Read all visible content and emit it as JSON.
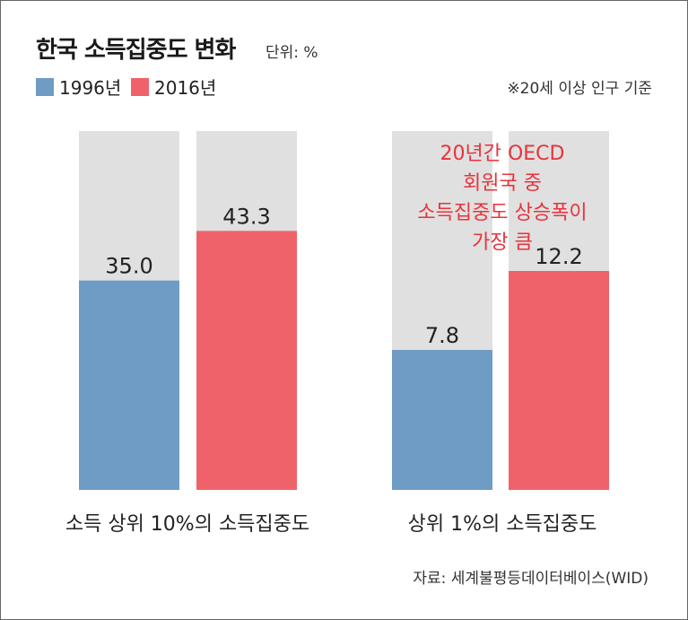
{
  "title": "한국 소득집중도 변화",
  "unit": "단위: %",
  "note": "※20세 이상 인구 기준",
  "source": "자료: 세계불평등데이터베이스(WID)",
  "annotation_lines": [
    "20년간 OECD",
    "회원국 중",
    "소득집중도 상승폭이",
    "가장 큼"
  ],
  "colors": {
    "series_1996": "#6f9cc4",
    "series_2016": "#f0626a",
    "background_bar": "#e0e0e0",
    "annotation": "#e8333b"
  },
  "chart_data": {
    "type": "bar",
    "categories": [
      "소득 상위 10%의 소득집중도",
      "상위 1%의 소득집중도"
    ],
    "series": [
      {
        "name": "1996년",
        "values": [
          35.0,
          7.8
        ],
        "labels": [
          "35.0",
          "7.8"
        ]
      },
      {
        "name": "2016년",
        "values": [
          43.3,
          12.2
        ],
        "labels": [
          "43.3",
          "12.2"
        ]
      }
    ],
    "ylim": [
      [
        0,
        60
      ],
      [
        0,
        20
      ]
    ],
    "legend": "top-left",
    "grid": false
  }
}
